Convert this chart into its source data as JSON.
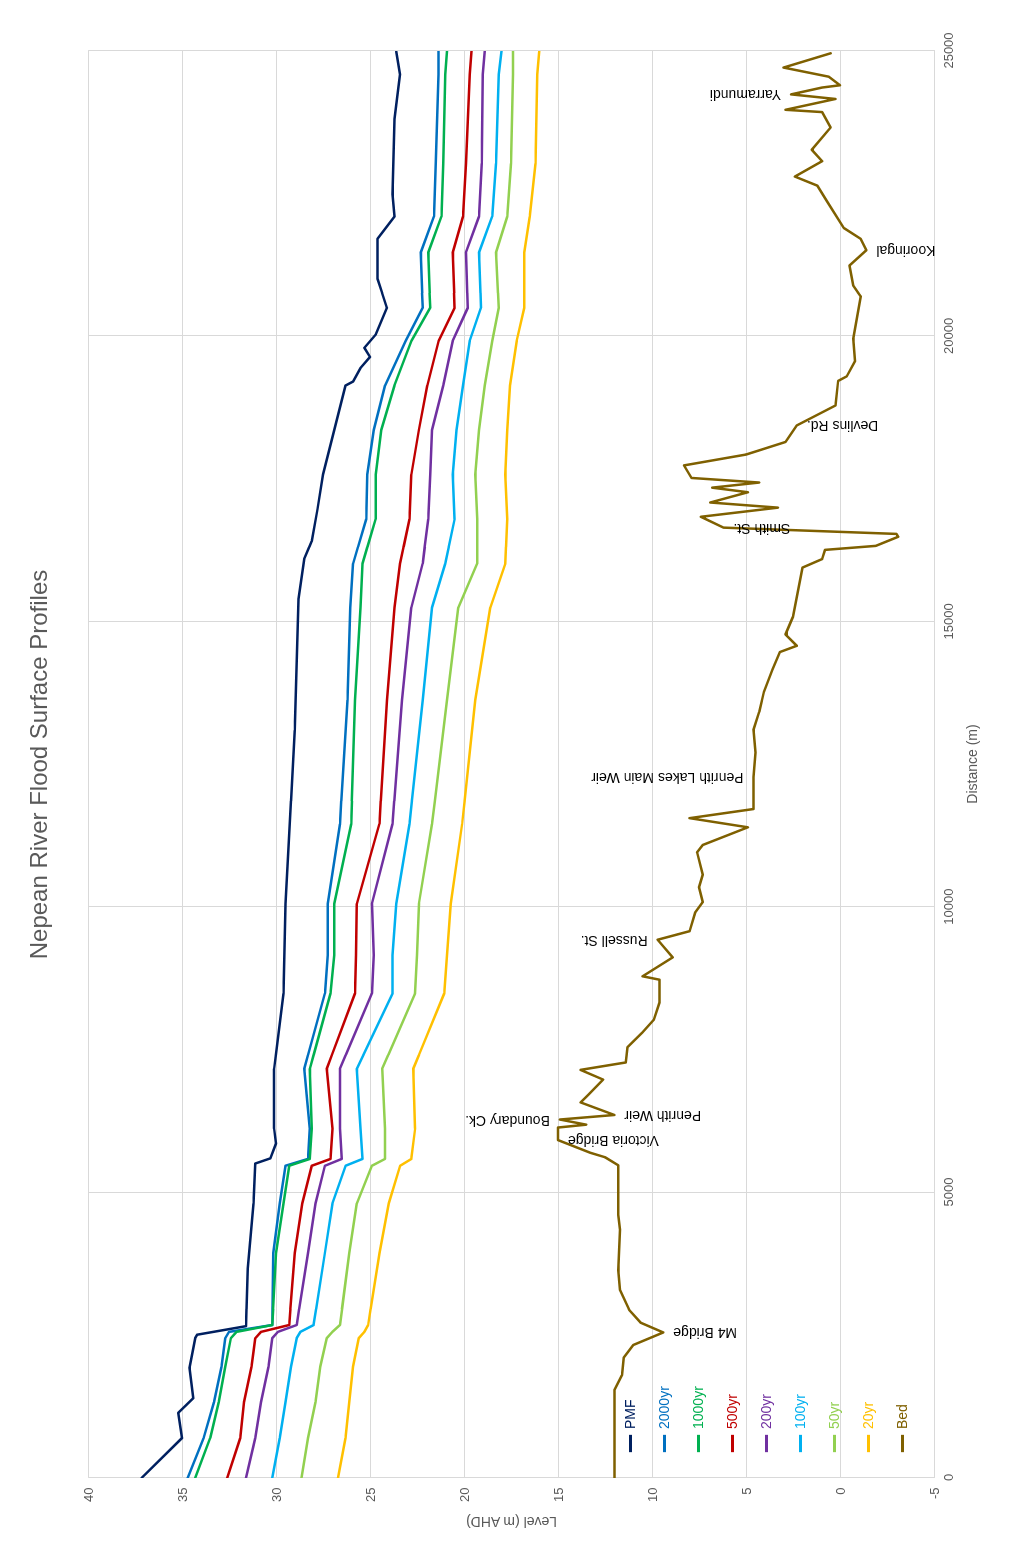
{
  "chart_data": {
    "type": "line",
    "title": "Nepean River Flood Surface Profiles",
    "xlabel": "Level (m AHD)",
    "ylabel": "Distance (m)",
    "xlim": [
      40,
      -5
    ],
    "xticks": [
      40,
      35,
      30,
      25,
      20,
      15,
      10,
      5,
      0,
      -5
    ],
    "ylim": [
      0,
      25000
    ],
    "yticks": [
      0,
      5000,
      10000,
      15000,
      20000,
      25000
    ],
    "grid": true,
    "legend": "bottom right",
    "marker": "none",
    "line_style": "solid",
    "series": [
      {
        "name": "PMF",
        "color": "#002060",
        "values": [
          0,
          700,
          1140,
          1400,
          1930,
          2450,
          2510,
          2660,
          3670,
          4810,
          5510,
          5600,
          5860,
          6120,
          7170,
          8490,
          10060,
          13100,
          15400,
          16100,
          16410,
          16960,
          17580,
          18360,
          19140,
          19210,
          19450,
          19640,
          19800,
          20030,
          20500,
          21010,
          21710,
          22100,
          22490,
          23810,
          24590,
          24990
        ],
        "x": [
          37.15,
          35.0,
          35.2,
          34.4,
          34.6,
          34.3,
          34.2,
          31.6,
          31.5,
          31.2,
          31.1,
          30.3,
          30.0,
          30.1,
          30.1,
          29.6,
          29.5,
          29.0,
          28.8,
          28.5,
          28.1,
          27.8,
          27.5,
          26.9,
          26.3,
          25.9,
          25.5,
          25.0,
          25.3,
          24.7,
          24.1,
          24.6,
          24.6,
          23.7,
          23.8,
          23.7,
          23.4,
          23.6
        ]
      },
      {
        "name": "2000yr",
        "color": "#0070c0",
        "values": [
          0,
          700,
          1330,
          1950,
          2450,
          2560,
          2680,
          3940,
          4810,
          5470,
          5590,
          6120,
          7170,
          8490,
          9160,
          10060,
          11460,
          13630,
          15250,
          16020,
          16800,
          17580,
          18360,
          19140,
          19920,
          20500,
          21470,
          22100,
          23030,
          24590,
          25000
        ],
        "x": [
          34.7,
          33.85,
          33.3,
          32.9,
          32.7,
          32.5,
          30.2,
          30.15,
          29.8,
          29.5,
          28.3,
          28.2,
          28.5,
          27.4,
          27.25,
          27.25,
          26.6,
          26.2,
          26.05,
          25.9,
          25.2,
          25.15,
          24.8,
          24.2,
          23.1,
          22.2,
          22.3,
          21.6,
          21.5,
          21.35,
          21.35
        ]
      },
      {
        "name": "1000yr",
        "color": "#00b050",
        "values": [
          0,
          700,
          1330,
          1950,
          2450,
          2560,
          2680,
          3940,
          4810,
          5470,
          5590,
          6120,
          7170,
          8490,
          9160,
          10060,
          11460,
          13630,
          15250,
          16020,
          16800,
          17580,
          18360,
          19140,
          19920,
          20500,
          21470,
          22100,
          23030,
          24590,
          25000
        ],
        "x": [
          34.3,
          33.5,
          33.05,
          32.7,
          32.4,
          32.1,
          30.2,
          30.0,
          29.6,
          29.3,
          28.2,
          28.1,
          28.2,
          27.1,
          26.9,
          26.9,
          26.0,
          25.8,
          25.5,
          25.4,
          24.7,
          24.7,
          24.4,
          23.7,
          22.8,
          21.8,
          21.9,
          21.2,
          21.1,
          21.0,
          20.9
        ]
      },
      {
        "name": "500yr",
        "color": "#c00000",
        "values": [
          0,
          700,
          1330,
          1950,
          2450,
          2560,
          2680,
          3940,
          4810,
          5470,
          5590,
          6120,
          7170,
          8490,
          9160,
          10060,
          11460,
          13630,
          15250,
          16020,
          16800,
          17580,
          18360,
          19140,
          19920,
          20500,
          21470,
          22100,
          23030,
          24590,
          25000
        ],
        "x": [
          32.6,
          31.9,
          31.7,
          31.3,
          31.1,
          30.8,
          29.3,
          29.0,
          28.6,
          28.1,
          27.1,
          27.0,
          27.3,
          25.8,
          25.75,
          25.7,
          24.5,
          24.1,
          23.7,
          23.4,
          22.9,
          22.8,
          22.4,
          21.95,
          21.35,
          20.5,
          20.6,
          20.05,
          19.9,
          19.7,
          19.6
        ]
      },
      {
        "name": "200yr",
        "color": "#7030a0",
        "values": [
          0,
          700,
          1330,
          1950,
          2450,
          2560,
          2680,
          3940,
          4810,
          5470,
          5590,
          6120,
          7170,
          8490,
          9160,
          10060,
          11460,
          13630,
          15250,
          16020,
          16800,
          17580,
          18360,
          19140,
          19920,
          20500,
          21470,
          22100,
          23030,
          24590,
          25000
        ],
        "x": [
          31.6,
          31.1,
          30.8,
          30.4,
          30.2,
          29.9,
          28.9,
          28.3,
          27.9,
          27.4,
          26.5,
          26.6,
          26.6,
          24.9,
          24.8,
          24.9,
          23.8,
          23.3,
          22.8,
          22.2,
          21.9,
          21.8,
          21.7,
          21.1,
          20.6,
          19.8,
          19.9,
          19.2,
          19.05,
          19.0,
          18.9
        ]
      },
      {
        "name": "100yr",
        "color": "#00b0f0",
        "values": [
          0,
          700,
          1330,
          1950,
          2450,
          2560,
          2680,
          3940,
          4810,
          5470,
          5590,
          6120,
          7170,
          8490,
          9160,
          10060,
          11460,
          13630,
          15250,
          16020,
          16800,
          17580,
          18360,
          19140,
          19920,
          20500,
          21470,
          22100,
          23030,
          24590,
          25000
        ],
        "x": [
          30.2,
          29.8,
          29.5,
          29.2,
          28.9,
          28.7,
          28.0,
          27.4,
          27.0,
          26.3,
          25.4,
          25.5,
          25.7,
          23.8,
          23.8,
          23.6,
          22.9,
          22.2,
          21.7,
          21.0,
          20.5,
          20.6,
          20.4,
          20.05,
          19.7,
          19.1,
          19.2,
          18.5,
          18.3,
          18.15,
          18.0
        ]
      },
      {
        "name": "50yr",
        "color": "#92d050",
        "values": [
          0,
          700,
          1330,
          1950,
          2450,
          2560,
          2680,
          3940,
          4810,
          5470,
          5590,
          6120,
          7170,
          8490,
          9160,
          10060,
          11460,
          13630,
          15250,
          16020,
          16800,
          17580,
          18360,
          19140,
          19920,
          20500,
          21470,
          22100,
          23030,
          24590,
          25000
        ],
        "x": [
          28.65,
          28.3,
          27.9,
          27.65,
          27.3,
          27.0,
          26.6,
          26.1,
          25.7,
          24.9,
          24.2,
          24.2,
          24.35,
          22.6,
          22.5,
          22.4,
          21.7,
          20.9,
          20.3,
          19.3,
          19.3,
          19.4,
          19.2,
          18.9,
          18.5,
          18.15,
          18.3,
          17.7,
          17.5,
          17.4,
          17.4
        ]
      },
      {
        "name": "20yr",
        "color": "#ffc000",
        "values": [
          0,
          700,
          1330,
          1950,
          2450,
          2560,
          2680,
          3940,
          4810,
          5470,
          5590,
          6120,
          7170,
          8490,
          9160,
          10060,
          11460,
          13630,
          15250,
          16020,
          16800,
          17580,
          18360,
          19140,
          19920,
          20500,
          21470,
          22100,
          23030,
          24590,
          25000
        ],
        "x": [
          26.7,
          26.3,
          26.1,
          25.9,
          25.6,
          25.3,
          25.1,
          24.5,
          24.0,
          23.4,
          22.8,
          22.6,
          22.7,
          21.05,
          20.9,
          20.7,
          20.1,
          19.4,
          18.6,
          17.8,
          17.7,
          17.8,
          17.7,
          17.55,
          17.2,
          16.8,
          16.8,
          16.5,
          16.2,
          16.1,
          16.0
        ]
      },
      {
        "name": "Bed",
        "color": "#7f6000",
        "values": [
          0,
          1540,
          1800,
          2110,
          2330,
          2550,
          2720,
          2940,
          3290,
          3640,
          4350,
          4610,
          5480,
          5620,
          5700,
          5920,
          6140,
          6190,
          6280,
          6360,
          6580,
          6710,
          6980,
          7150,
          7280,
          7550,
          7810,
          8030,
          8330,
          8730,
          8790,
          9120,
          9430,
          9580,
          9910,
          10090,
          10350,
          10570,
          10960,
          11090,
          11400,
          11560,
          11720,
          12280,
          12710,
          13110,
          13420,
          13770,
          14160,
          14470,
          14580,
          14780,
          15090,
          15950,
          16100,
          16260,
          16330,
          16490,
          16540,
          16650,
          16840,
          17000,
          17090,
          17270,
          17350,
          17440,
          17520,
          17740,
          17930,
          18150,
          18440,
          18790,
          19220,
          19300,
          19570,
          19960,
          20700,
          20890,
          21240,
          21510,
          21710,
          21900,
          22370,
          22640,
          22800,
          23070,
          23270,
          23660,
          23930,
          23970,
          24160,
          24240,
          24360,
          24400,
          24550,
          24710,
          24960
        ],
        "x": [
          12.0,
          12.0,
          11.6,
          11.5,
          11.0,
          9.4,
          10.6,
          11.2,
          11.7,
          11.8,
          11.7,
          11.8,
          11.8,
          12.5,
          13.3,
          15.0,
          15.0,
          13.5,
          14.9,
          12.0,
          13.8,
          13.4,
          12.6,
          13.8,
          11.4,
          11.3,
          10.5,
          9.9,
          9.6,
          9.6,
          10.5,
          8.9,
          9.7,
          8.0,
          7.7,
          7.3,
          7.5,
          7.3,
          7.6,
          7.3,
          4.9,
          8.0,
          4.6,
          4.6,
          4.5,
          4.6,
          4.3,
          4.05,
          3.6,
          3.2,
          2.3,
          2.9,
          2.5,
          2.0,
          0.95,
          0.8,
          -1.9,
          -3.1,
          -3.0,
          6.2,
          7.4,
          3.3,
          6.9,
          4.9,
          6.8,
          4.3,
          7.9,
          8.3,
          5.0,
          2.9,
          2.3,
          0.24,
          0.1,
          -0.36,
          -0.8,
          -0.7,
          -1.1,
          -0.7,
          -0.5,
          -1.4,
          -1.1,
          -0.2,
          0.7,
          1.2,
          2.4,
          0.95,
          1.5,
          0.5,
          0.95,
          2.9,
          0.24,
          2.6,
          0.95,
          0.0,
          0.6,
          3.0,
          0.5
        ]
      }
    ],
    "annotations": [
      {
        "text": "M4 Bridge",
        "x": 9.4,
        "y": 2550
      },
      {
        "text": "Victoria Bridge",
        "x": 15.0,
        "y": 5920
      },
      {
        "text": "Penrith Weir",
        "x": 12.0,
        "y": 6360
      },
      {
        "text": "Boundary Ck.",
        "x": 14.9,
        "y": 6280
      },
      {
        "text": "Russell St.",
        "x": 9.7,
        "y": 9430
      },
      {
        "text": "Penrith Lakes Main Weir",
        "x": 4.6,
        "y": 12280
      },
      {
        "text": "Smith St.",
        "x": 6.2,
        "y": 16650
      },
      {
        "text": "Devlins Rd.",
        "x": 2.3,
        "y": 18440
      },
      {
        "text": "Kooringal",
        "x": -1.4,
        "y": 21510
      },
      {
        "text": "Yarramundi",
        "x": 2.6,
        "y": 24240
      }
    ]
  }
}
